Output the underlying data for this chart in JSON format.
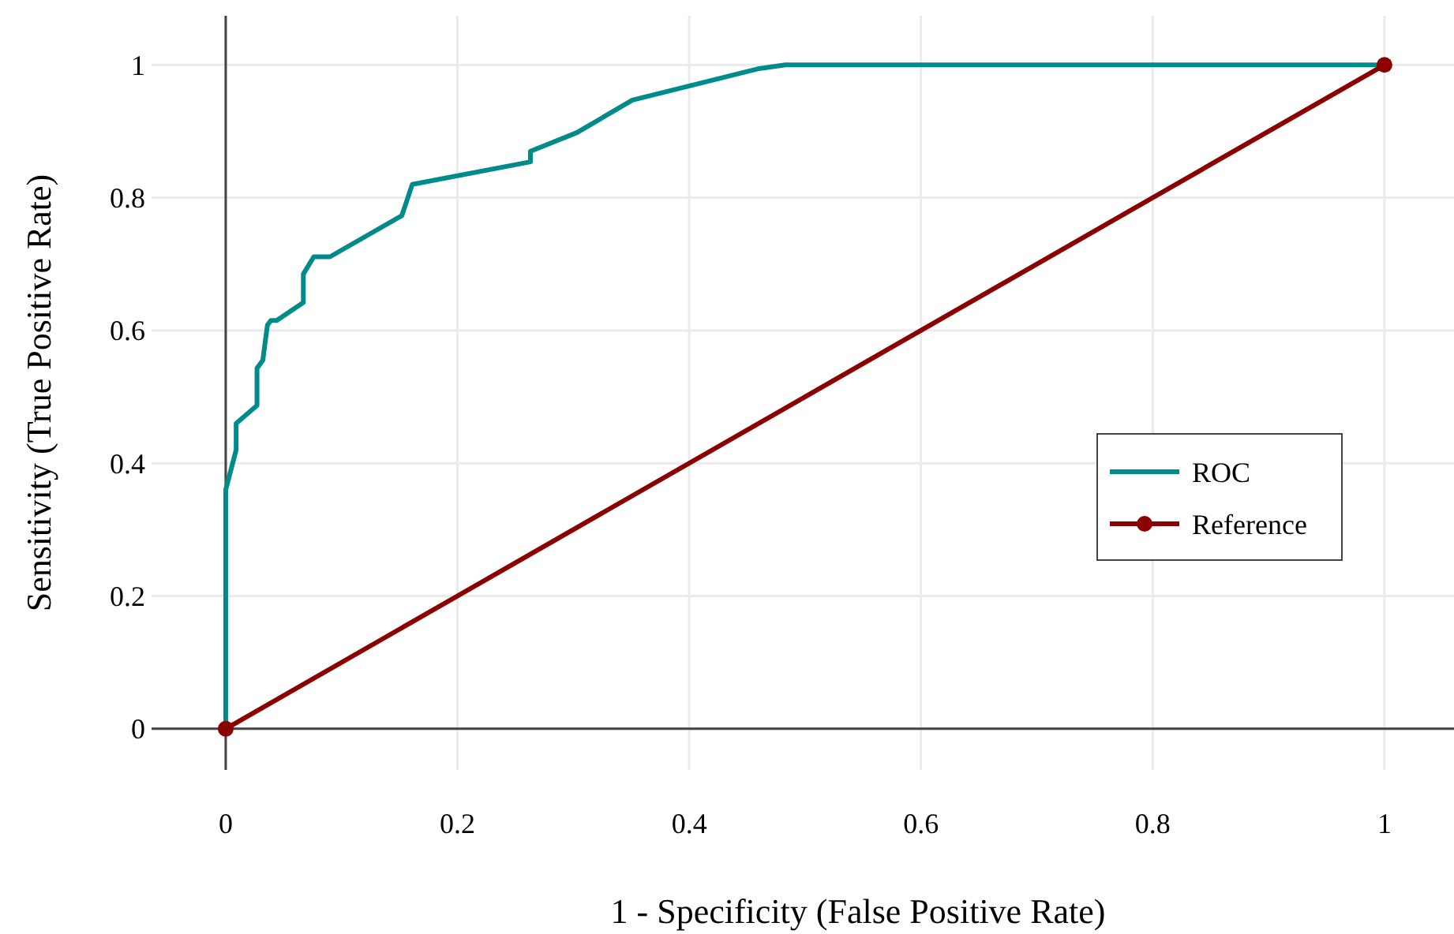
{
  "chart_data": {
    "type": "line",
    "xlabel": "1 - Specificity (False Positive Rate)",
    "ylabel": "Sensitivity (True Positive Rate)",
    "xlim": [
      -0.064,
      1.06
    ],
    "ylim": [
      -0.062,
      1.074
    ],
    "xticks": [
      0,
      0.2,
      0.4,
      0.6,
      0.8,
      1
    ],
    "yticks": [
      0,
      0.2,
      0.4,
      0.6,
      0.8,
      1
    ],
    "grid": true,
    "legend": "right",
    "series": [
      {
        "name": "ROC",
        "color": "#008b8b",
        "marker": "none",
        "x": [
          0,
          0,
          0.009,
          0.009,
          0.027,
          0.027,
          0.032,
          0.036,
          0.039,
          0.044,
          0.067,
          0.067,
          0.076,
          0.09,
          0.152,
          0.161,
          0.263,
          0.263,
          0.303,
          0.351,
          0.459,
          0.483,
          1
        ],
        "values": [
          0,
          0.36,
          0.42,
          0.46,
          0.487,
          0.543,
          0.555,
          0.608,
          0.615,
          0.615,
          0.642,
          0.685,
          0.711,
          0.711,
          0.773,
          0.82,
          0.854,
          0.87,
          0.898,
          0.947,
          0.994,
          1,
          1
        ]
      },
      {
        "name": "Reference",
        "color": "#8b0000",
        "marker": "circle",
        "x": [
          0,
          1
        ],
        "values": [
          0,
          1
        ]
      }
    ]
  }
}
